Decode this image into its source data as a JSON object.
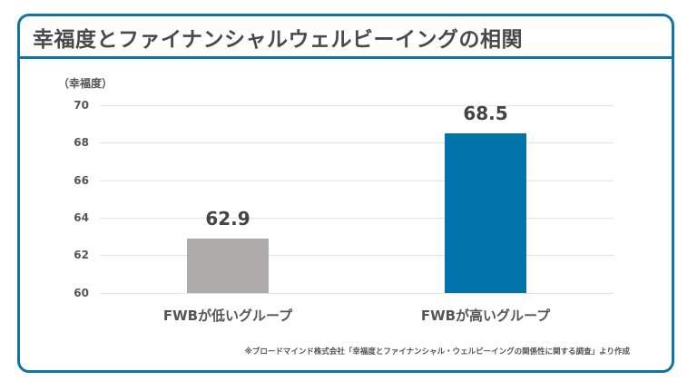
{
  "title": "幸福度とファイナンシャルウェルビーイングの相関",
  "source_note": "※ブロードマインド株式会社「幸福度とファイナンシャル・ウェルビーイングの関係性に関する調査」より作成",
  "colors": {
    "frame": "#1173a8",
    "bar_low": "#aeaaa9",
    "bar_high": "#0073ab"
  },
  "chart_data": {
    "type": "bar",
    "title": "幸福度とファイナンシャルウェルビーイングの相関",
    "xlabel": "",
    "ylabel": "（幸福度）",
    "categories": [
      "FWBが低いグループ",
      "FWBが高いグループ"
    ],
    "values": [
      62.9,
      68.5
    ],
    "value_labels": [
      "62.9",
      "68.5"
    ],
    "ylim": [
      60,
      70
    ],
    "yticks": [
      "70",
      "68",
      "66",
      "64",
      "62",
      "60"
    ],
    "grid": true,
    "legend": null
  }
}
